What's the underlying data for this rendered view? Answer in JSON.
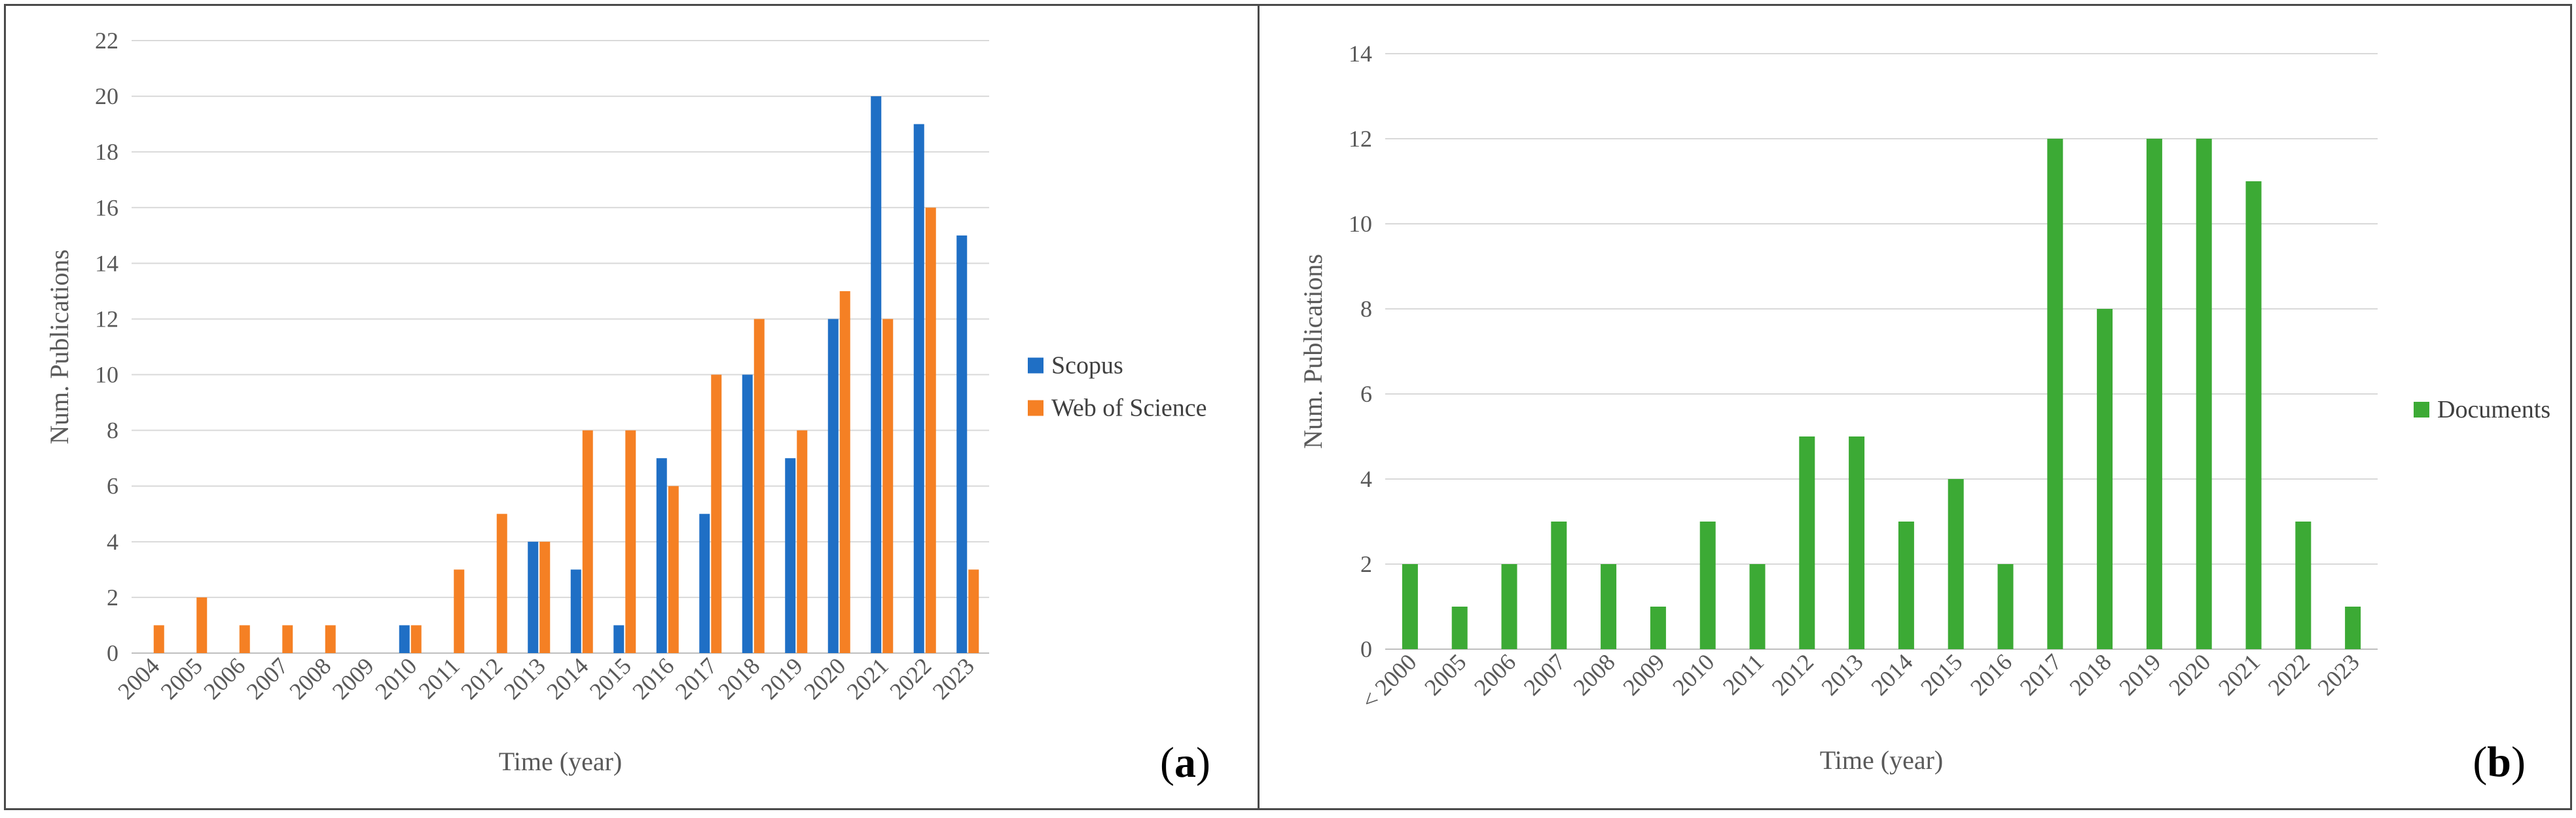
{
  "chart_data": [
    {
      "panel": "a",
      "type": "bar",
      "panel_label": {
        "open": "(",
        "letter": "a",
        "close": ")"
      },
      "categories": [
        "2004",
        "2005",
        "2006",
        "2007",
        "2008",
        "2009",
        "2010",
        "2011",
        "2012",
        "2013",
        "2014",
        "2015",
        "2016",
        "2017",
        "2018",
        "2019",
        "2020",
        "2021",
        "2022",
        "2023"
      ],
      "series": [
        {
          "name": "Scopus",
          "color": "#1f6fc5",
          "values": [
            0,
            0,
            0,
            0,
            0,
            0,
            1,
            0,
            0,
            4,
            3,
            1,
            7,
            5,
            10,
            7,
            12,
            20,
            19,
            15
          ]
        },
        {
          "name": "Web of Science",
          "color": "#f58024",
          "values": [
            1,
            2,
            1,
            1,
            1,
            0,
            1,
            3,
            5,
            4,
            8,
            8,
            6,
            10,
            12,
            8,
            13,
            12,
            16,
            3
          ]
        }
      ],
      "xlabel": "Time (year)",
      "ylabel": "Num. Publications",
      "ylim": [
        0,
        22
      ],
      "yticks": [
        0,
        2,
        4,
        6,
        8,
        10,
        12,
        14,
        16,
        18,
        20,
        22
      ],
      "grid": true,
      "legend": "right"
    },
    {
      "panel": "b",
      "type": "bar",
      "panel_label": {
        "open": "(",
        "letter": "b",
        "close": ")"
      },
      "categories": [
        "< 2000",
        "2005",
        "2006",
        "2007",
        "2008",
        "2009",
        "2010",
        "2011",
        "2012",
        "2013",
        "2014",
        "2015",
        "2016",
        "2017",
        "2018",
        "2019",
        "2020",
        "2021",
        "2022",
        "2023"
      ],
      "series": [
        {
          "name": "Documents",
          "color": "#3caa35",
          "values": [
            2,
            1,
            2,
            3,
            2,
            1,
            3,
            2,
            5,
            5,
            3,
            4,
            2,
            12,
            8,
            12,
            12,
            11,
            3,
            1
          ]
        }
      ],
      "xlabel": "Time (year)",
      "ylabel": "Num. Publications",
      "ylim": [
        0,
        14
      ],
      "yticks": [
        0,
        2,
        4,
        6,
        8,
        10,
        12,
        14
      ],
      "grid": true,
      "legend": "right"
    }
  ]
}
